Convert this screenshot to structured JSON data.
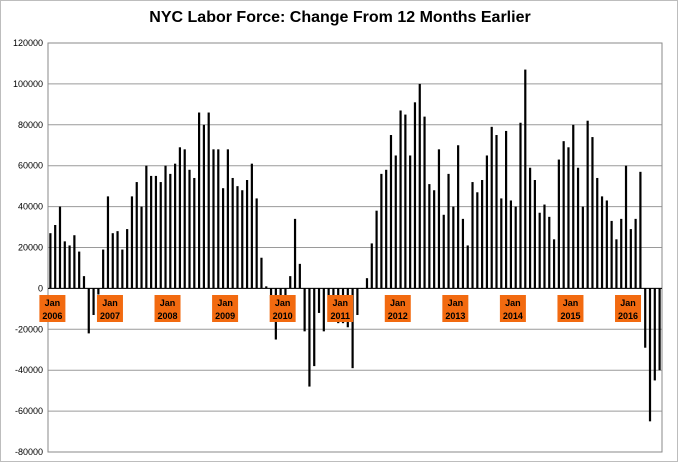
{
  "chart_data": {
    "type": "bar",
    "title": "NYC Labor Force:  Change From 12 Months Earlier",
    "xlabel": "",
    "ylabel": "",
    "ylim": [
      -80000,
      120000
    ],
    "yticks": [
      120000,
      100000,
      80000,
      60000,
      40000,
      20000,
      0,
      -20000,
      -40000,
      -60000,
      -80000
    ],
    "grid": true,
    "x_start": "2006-01",
    "x_end": "2016-04",
    "xtick_labels": [
      {
        "month": "Jan",
        "year": "2006"
      },
      {
        "month": "Jan",
        "year": "2007"
      },
      {
        "month": "Jan",
        "year": "2008"
      },
      {
        "month": "Jan",
        "year": "2009"
      },
      {
        "month": "Jan",
        "year": "2010"
      },
      {
        "month": "Jan",
        "year": "2011"
      },
      {
        "month": "Jan",
        "year": "2012"
      },
      {
        "month": "Jan",
        "year": "2013"
      },
      {
        "month": "Jan",
        "year": "2014"
      },
      {
        "month": "Jan",
        "year": "2015"
      },
      {
        "month": "Jan",
        "year": "2016"
      }
    ],
    "label_box_color": "#f26a10",
    "bar_color": "#000000",
    "values": [
      27000,
      31000,
      40000,
      23000,
      21000,
      26000,
      18000,
      6000,
      -22000,
      -13000,
      -3000,
      19000,
      45000,
      27000,
      28000,
      19000,
      29000,
      45000,
      52000,
      40000,
      60000,
      55000,
      55000,
      52000,
      60000,
      56000,
      61000,
      69000,
      68000,
      58000,
      54000,
      86000,
      80000,
      86000,
      68000,
      68000,
      49000,
      68000,
      54000,
      50000,
      48000,
      53000,
      61000,
      44000,
      15000,
      1000,
      -5000,
      -25000,
      -5000,
      -5000,
      6000,
      34000,
      12000,
      -21000,
      -48000,
      -38000,
      -12000,
      -21000,
      -8000,
      -16000,
      -17000,
      -17000,
      -19000,
      -39000,
      -13000,
      0,
      5000,
      22000,
      38000,
      56000,
      58000,
      75000,
      65000,
      87000,
      85000,
      65000,
      91000,
      100000,
      84000,
      51000,
      48000,
      68000,
      36000,
      56000,
      40000,
      70000,
      34000,
      21000,
      52000,
      47000,
      53000,
      65000,
      79000,
      75000,
      44000,
      77000,
      43000,
      40000,
      81000,
      107000,
      59000,
      53000,
      37000,
      41000,
      35000,
      24000,
      63000,
      72000,
      69000,
      80000,
      59000,
      40000,
      82000,
      74000,
      54000,
      45000,
      43000,
      33000,
      24000,
      34000,
      60000,
      29000,
      34000,
      57000,
      -29000,
      -65000,
      -45000,
      -40000
    ]
  }
}
